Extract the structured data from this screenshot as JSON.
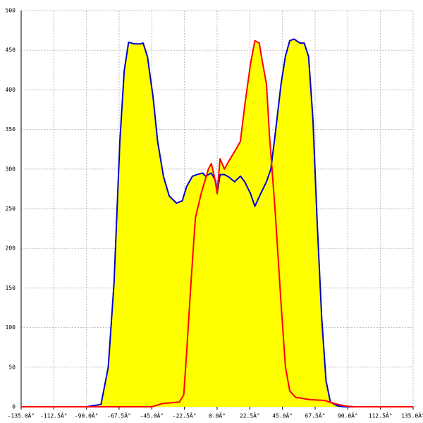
{
  "chart_data": {
    "type": "area",
    "fill": "#ffff00",
    "grid": true,
    "xlim": [
      -135,
      135
    ],
    "ylim": [
      0,
      500
    ],
    "xticks": [
      {
        "value": -135,
        "label": "-135.0Â°"
      },
      {
        "value": -112.5,
        "label": "-112.5Â°"
      },
      {
        "value": -90,
        "label": "-90.0Â°"
      },
      {
        "value": -67.5,
        "label": "-67.5Â°"
      },
      {
        "value": -45,
        "label": "-45.0Â°"
      },
      {
        "value": -22.5,
        "label": "-22.5Â°"
      },
      {
        "value": 0,
        "label": "0.0Â°"
      },
      {
        "value": 22.5,
        "label": "22.5Â°"
      },
      {
        "value": 45,
        "label": "45.0Â°"
      },
      {
        "value": 67.5,
        "label": "67.5Â°"
      },
      {
        "value": 90,
        "label": "90.0Â°"
      },
      {
        "value": 112.5,
        "label": "112.5Â°"
      },
      {
        "value": 135,
        "label": "135.0Â°"
      }
    ],
    "yticks": [
      0,
      50,
      100,
      150,
      200,
      250,
      300,
      350,
      400,
      450,
      500
    ],
    "series": [
      {
        "color": "#0000cc",
        "x": [
          -135,
          -90,
          -80,
          -75,
          -71,
          -67,
          -64,
          -61,
          -57,
          -53,
          -51,
          -48,
          -44,
          -41,
          -37,
          -33,
          -28,
          -24,
          -21,
          -17,
          -14,
          -10,
          -8,
          -4,
          -1,
          0,
          2,
          5,
          8,
          12,
          16,
          19,
          23,
          26,
          30,
          34,
          37,
          40,
          44,
          47,
          50,
          53,
          57,
          60,
          63,
          66,
          69,
          72,
          75,
          78,
          83,
          88,
          135
        ],
        "values": [
          0,
          0,
          3,
          50,
          157,
          335,
          424,
          460,
          458,
          458,
          459,
          442,
          389,
          335,
          291,
          266,
          257,
          260,
          278,
          291,
          293,
          295,
          291,
          295,
          285,
          269,
          293,
          293,
          290,
          284,
          291,
          284,
          269,
          253,
          269,
          284,
          300,
          344,
          407,
          442,
          462,
          464,
          459,
          459,
          442,
          362,
          229,
          113,
          33,
          6,
          1,
          0,
          0
        ]
      },
      {
        "color": "#ff0000",
        "x": [
          -135,
          -45,
          -38,
          -26,
          -23,
          -21,
          -18,
          -15,
          -11,
          -6,
          -4,
          -1.5,
          0,
          2,
          5,
          8,
          12,
          16,
          19,
          23,
          26,
          29,
          31,
          34,
          36,
          40,
          44,
          47,
          50,
          54,
          64,
          74,
          81,
          88,
          95,
          135
        ],
        "values": [
          0,
          0,
          4,
          6,
          15,
          69,
          157,
          238,
          269,
          300,
          307,
          287,
          269,
          313,
          300,
          310,
          322,
          335,
          380,
          433,
          462,
          459,
          437,
          407,
          344,
          246,
          131,
          51,
          20,
          12,
          9,
          8,
          4,
          1,
          0,
          0
        ]
      }
    ]
  }
}
